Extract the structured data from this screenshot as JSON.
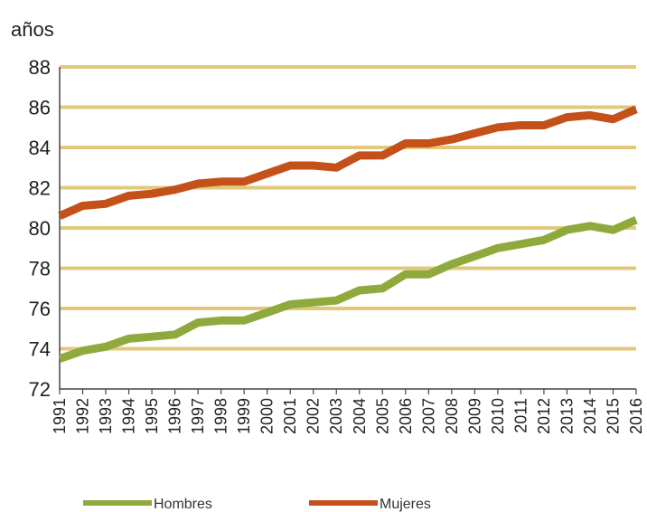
{
  "chart_data": {
    "type": "line",
    "ylabel": "años",
    "ylim": [
      72,
      88
    ],
    "yticks": [
      72,
      74,
      76,
      78,
      80,
      82,
      84,
      86,
      88
    ],
    "grid": true,
    "legend_position": "bottom",
    "x": [
      "1991",
      "1992",
      "1993",
      "1994",
      "1995",
      "1996",
      "1997",
      "1998",
      "1999",
      "2000",
      "2001",
      "2002",
      "2003",
      "2004",
      "2005",
      "2006",
      "2007",
      "2008",
      "2009",
      "2010",
      "2011",
      "2012",
      "2013",
      "2014",
      "2015",
      "2016"
    ],
    "series": [
      {
        "name": "Hombres",
        "color": "#8faa3c",
        "values": [
          73.5,
          73.9,
          74.1,
          74.5,
          74.6,
          74.7,
          75.3,
          75.4,
          75.4,
          75.8,
          76.2,
          76.3,
          76.4,
          76.9,
          77.0,
          77.7,
          77.7,
          78.2,
          78.6,
          79.0,
          79.2,
          79.4,
          79.9,
          80.1,
          79.9,
          80.4
        ]
      },
      {
        "name": "Mujeres",
        "color": "#c4501a",
        "values": [
          80.6,
          81.1,
          81.2,
          81.6,
          81.7,
          81.9,
          82.2,
          82.3,
          82.3,
          82.7,
          83.1,
          83.1,
          83.0,
          83.6,
          83.6,
          84.2,
          84.2,
          84.4,
          84.7,
          85.0,
          85.1,
          85.1,
          85.5,
          85.6,
          85.4,
          85.9
        ]
      }
    ]
  },
  "colors": {
    "grid": "#e2c97a",
    "axis": "#444444"
  }
}
